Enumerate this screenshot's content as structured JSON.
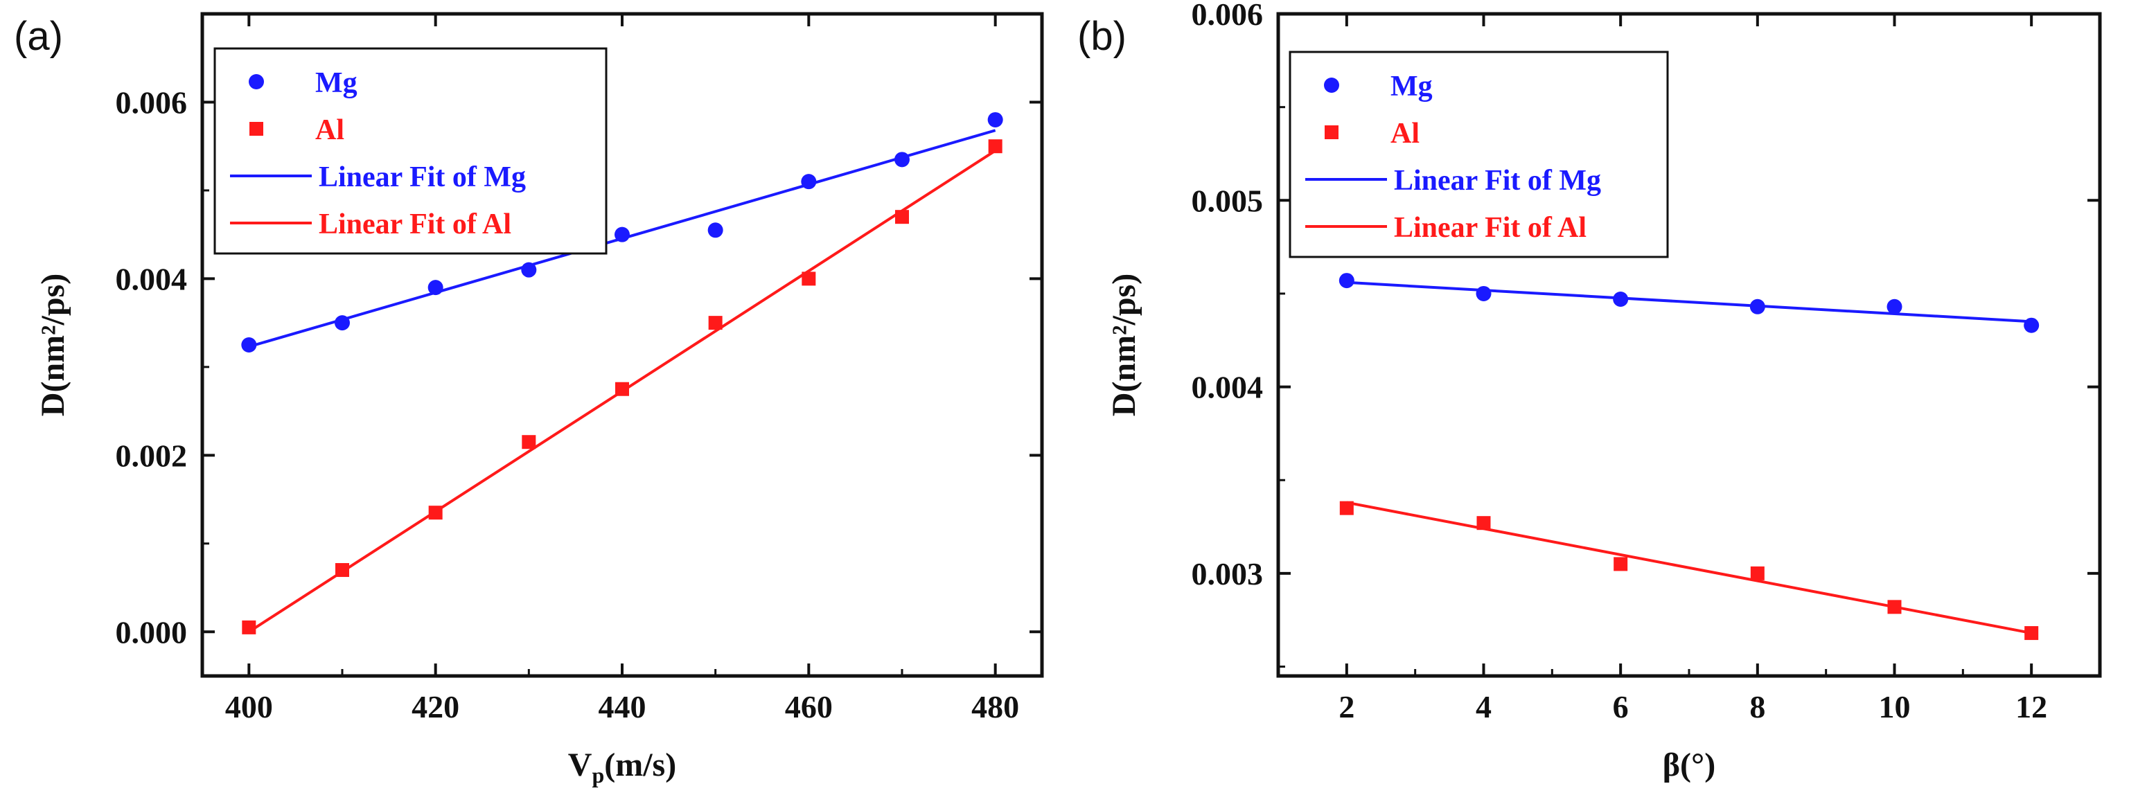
{
  "chart_data": [
    {
      "panel_label": "(a)",
      "type": "scatter",
      "xlabel": {
        "main": "V",
        "sub": "p",
        "rest": "(m/s)"
      },
      "ylabel": "D(nm²/ps)",
      "xlim": [
        395,
        485
      ],
      "ylim": [
        -0.0005,
        0.007
      ],
      "xticks": [
        400,
        420,
        440,
        460,
        480
      ],
      "xtick_labels": [
        "400",
        "420",
        "440",
        "460",
        "480"
      ],
      "yticks": [
        0,
        0.002,
        0.004,
        0.006
      ],
      "ytick_labels": [
        "0.000",
        "0.002",
        "0.004",
        "0.006"
      ],
      "legend_position": "top-left",
      "series": [
        {
          "name": "Mg",
          "marker": "circle",
          "color": "#1a1aff",
          "x": [
            400,
            410,
            420,
            430,
            440,
            450,
            460,
            470,
            480
          ],
          "y": [
            0.00325,
            0.0035,
            0.0039,
            0.0041,
            0.0045,
            0.00455,
            0.0051,
            0.00535,
            0.0058
          ]
        },
        {
          "name": "Al",
          "marker": "square",
          "color": "#ff1a1a",
          "x": [
            400,
            410,
            420,
            430,
            440,
            450,
            460,
            470,
            480
          ],
          "y": [
            5e-05,
            0.0007,
            0.00135,
            0.00215,
            0.00275,
            0.0035,
            0.004,
            0.0047,
            0.0055
          ]
        },
        {
          "name": "Linear Fit of Mg",
          "marker": "line",
          "color": "#1a1aff",
          "x": [
            400,
            480
          ],
          "y": [
            0.00323,
            0.00568
          ]
        },
        {
          "name": "Linear Fit of Al",
          "marker": "line",
          "color": "#ff1a1a",
          "x": [
            400,
            480
          ],
          "y": [
            0.0,
            0.00545
          ]
        }
      ]
    },
    {
      "panel_label": "(b)",
      "type": "scatter",
      "xlabel": {
        "main": "β(°)",
        "sub": "",
        "rest": ""
      },
      "ylabel": "D(nm²/ps)",
      "xlim": [
        1,
        13
      ],
      "ylim": [
        0.00245,
        0.006
      ],
      "xticks": [
        2,
        4,
        6,
        8,
        10,
        12
      ],
      "xtick_labels": [
        "2",
        "4",
        "6",
        "8",
        "10",
        "12"
      ],
      "yticks": [
        0.003,
        0.004,
        0.005,
        0.006
      ],
      "ytick_labels": [
        "0.003",
        "0.004",
        "0.005",
        "0.006"
      ],
      "legend_position": "top-left",
      "series": [
        {
          "name": "Mg",
          "marker": "circle",
          "color": "#1a1aff",
          "x": [
            2,
            4,
            6,
            8,
            10,
            12
          ],
          "y": [
            0.00457,
            0.0045,
            0.00447,
            0.00443,
            0.00443,
            0.00433
          ]
        },
        {
          "name": "Al",
          "marker": "square",
          "color": "#ff1a1a",
          "x": [
            2,
            4,
            6,
            8,
            10,
            12
          ],
          "y": [
            0.00335,
            0.00327,
            0.00305,
            0.003,
            0.00282,
            0.00268
          ]
        },
        {
          "name": "Linear Fit of Mg",
          "marker": "line",
          "color": "#1a1aff",
          "x": [
            2,
            12
          ],
          "y": [
            0.00456,
            0.00435
          ]
        },
        {
          "name": "Linear Fit of Al",
          "marker": "line",
          "color": "#ff1a1a",
          "x": [
            2,
            12
          ],
          "y": [
            0.00338,
            0.00268
          ]
        }
      ]
    }
  ]
}
